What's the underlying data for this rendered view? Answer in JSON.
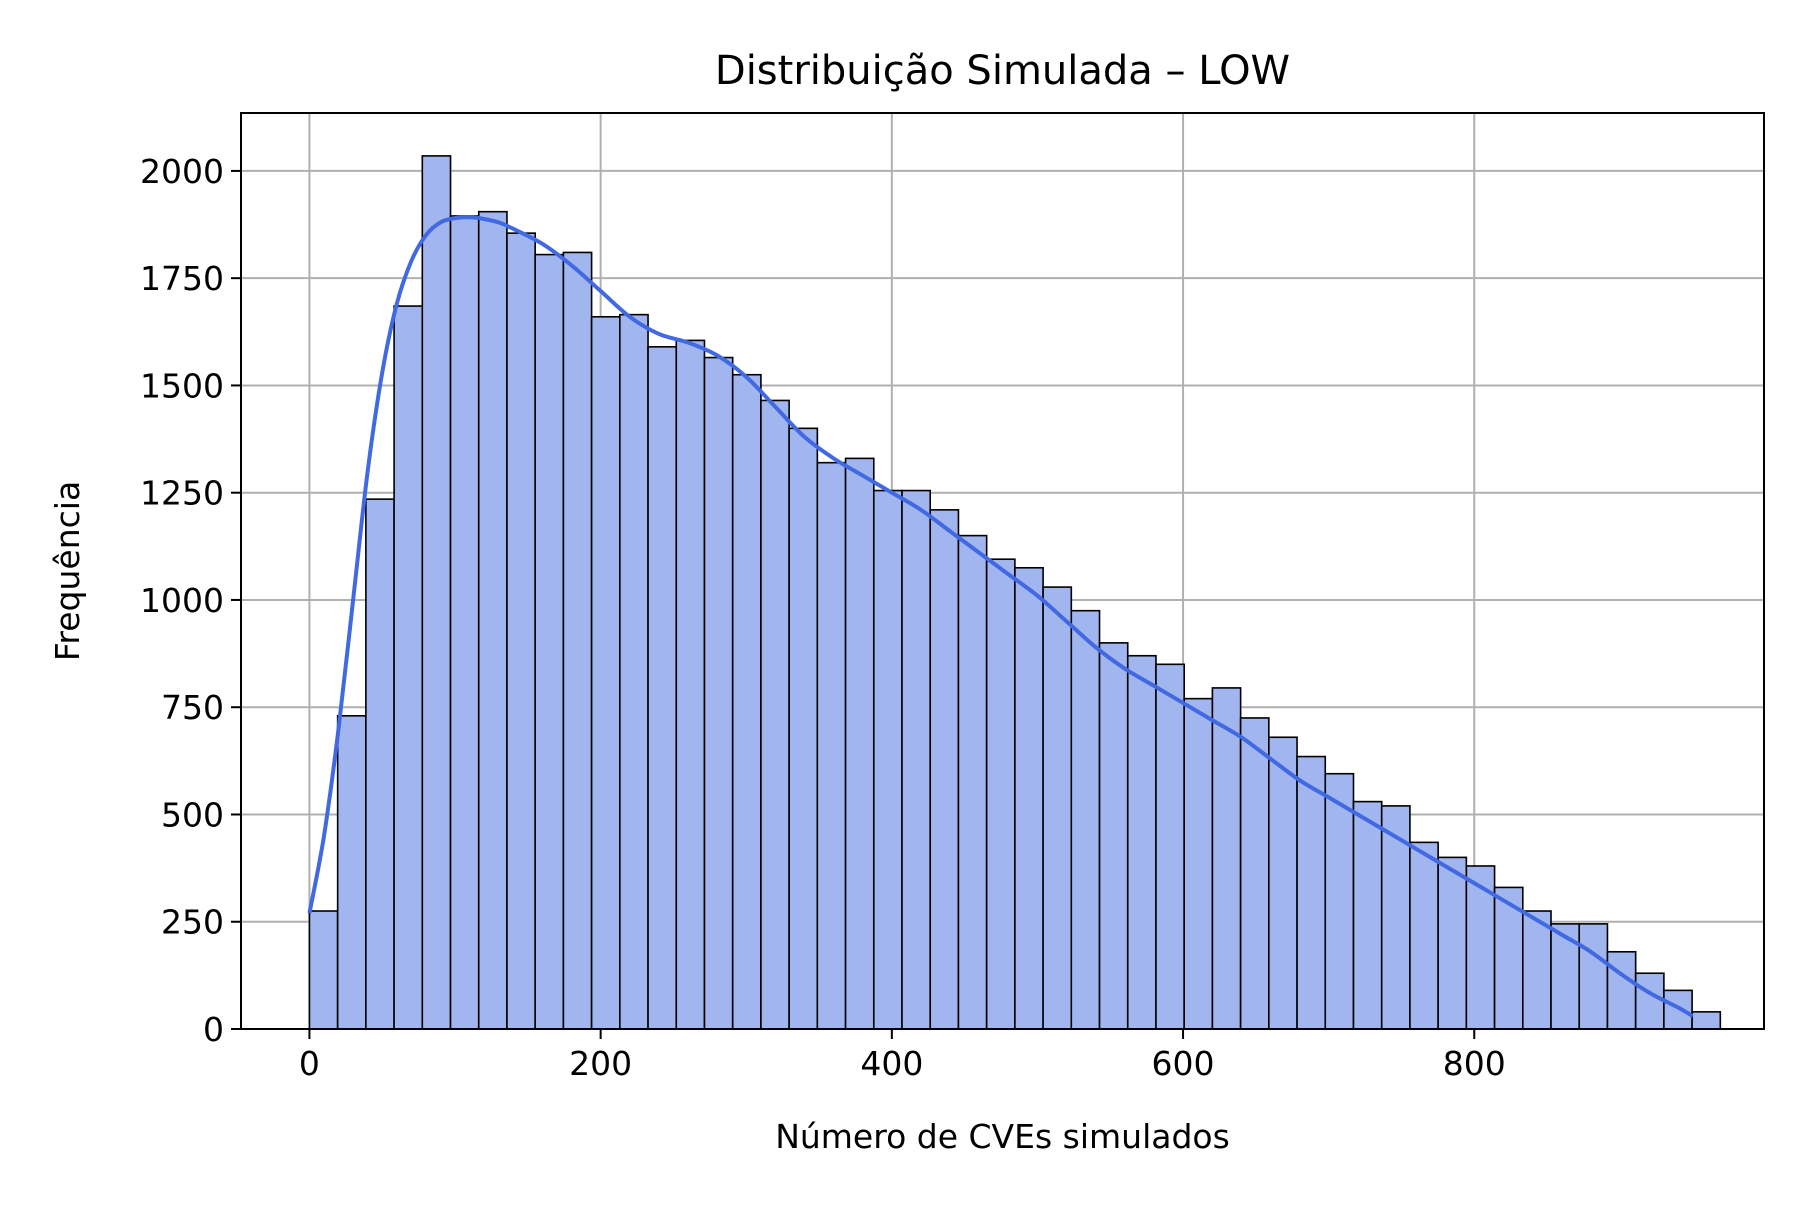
{
  "chart_data": {
    "type": "bar",
    "title": "Distribuição Simulada – LOW",
    "xlabel": "Número de CVEs simulados",
    "ylabel": "Frequência",
    "xlim": [
      -47,
      999
    ],
    "ylim": [
      0,
      2135
    ],
    "grid": true,
    "colors": {
      "bar_fill": "#a1b5ee",
      "bar_edge": "#000000",
      "kde_line": "#4169e1",
      "grid": "#b0b0b0"
    },
    "x_ticks": [
      0,
      200,
      400,
      600,
      800
    ],
    "x_tick_labels": [
      "0",
      "200",
      "400",
      "600",
      "800"
    ],
    "y_ticks": [
      0,
      250,
      500,
      750,
      1000,
      1250,
      1500,
      1750,
      2000
    ],
    "y_tick_labels": [
      "0",
      "250",
      "500",
      "750",
      "1000",
      "1250",
      "1500",
      "1750",
      "2000"
    ],
    "bin_start": 0,
    "bin_width": 19.38,
    "values": [
      275,
      730,
      1235,
      1685,
      2035,
      1895,
      1905,
      1855,
      1805,
      1810,
      1660,
      1665,
      1590,
      1605,
      1565,
      1525,
      1465,
      1400,
      1320,
      1330,
      1255,
      1255,
      1210,
      1150,
      1095,
      1075,
      1030,
      975,
      900,
      870,
      850,
      770,
      795,
      725,
      680,
      635,
      595,
      530,
      520,
      435,
      400,
      380,
      330,
      275,
      245,
      245,
      180,
      130,
      90,
      40
    ],
    "kde": {
      "x": [
        0,
        10,
        20,
        30,
        40,
        50,
        60,
        70,
        80,
        90,
        100,
        110,
        120,
        130,
        140,
        160,
        180,
        200,
        220,
        240,
        260,
        280,
        300,
        320,
        340,
        360,
        380,
        400,
        420,
        440,
        460,
        480,
        500,
        520,
        540,
        560,
        580,
        600,
        620,
        640,
        660,
        680,
        700,
        720,
        740,
        760,
        780,
        800,
        820,
        840,
        860,
        880,
        900,
        920,
        940,
        950
      ],
      "y": [
        270,
        450,
        700,
        1000,
        1300,
        1530,
        1690,
        1790,
        1850,
        1880,
        1890,
        1892,
        1888,
        1880,
        1865,
        1830,
        1780,
        1720,
        1660,
        1620,
        1600,
        1570,
        1520,
        1450,
        1380,
        1330,
        1290,
        1250,
        1210,
        1160,
        1110,
        1060,
        1010,
        950,
        890,
        840,
        800,
        760,
        720,
        680,
        630,
        580,
        540,
        500,
        460,
        420,
        380,
        340,
        300,
        260,
        220,
        180,
        130,
        85,
        50,
        30
      ]
    }
  }
}
